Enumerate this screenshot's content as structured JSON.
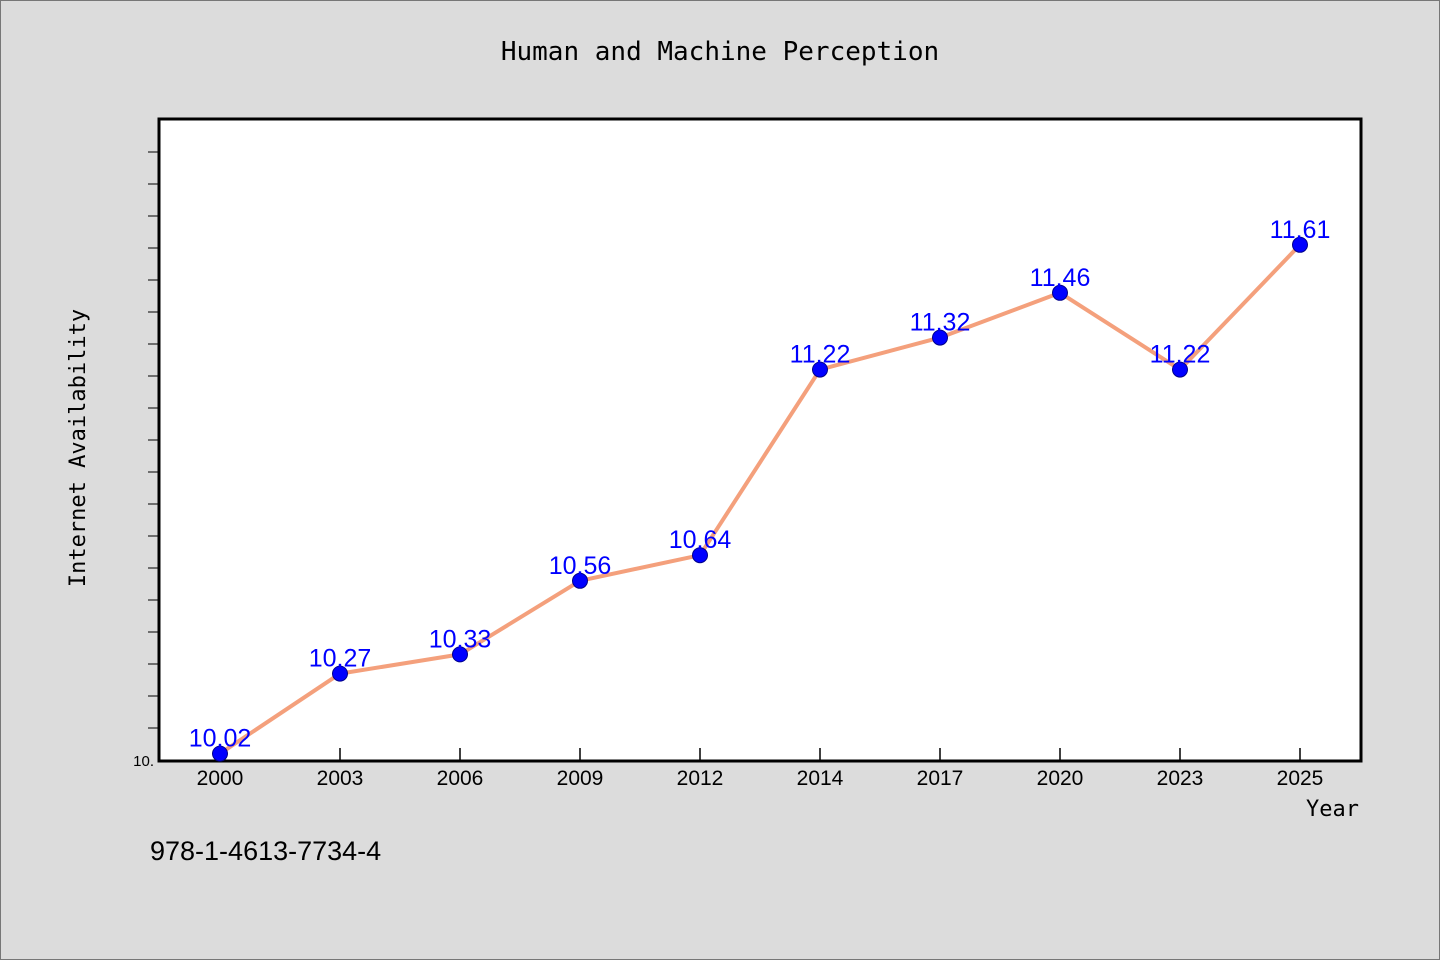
{
  "chart_data": {
    "type": "line",
    "title": "Human and Machine Perception",
    "xlabel": "Year",
    "ylabel": "Internet Availability",
    "categories": [
      "2000",
      "2003",
      "2006",
      "2009",
      "2012",
      "2014",
      "2017",
      "2020",
      "2023",
      "2025"
    ],
    "series": [
      {
        "values": [
          10.02,
          10.27,
          10.33,
          10.56,
          10.64,
          11.22,
          11.32,
          11.46,
          11.22,
          11.61
        ],
        "labels": [
          "10.02",
          "10.27",
          "10.33",
          "10.56",
          "10.64",
          "11.22",
          "11.32",
          "11.46",
          "11.22",
          "11.61"
        ]
      }
    ],
    "ylim": [
      10.0,
      12.0
    ],
    "y_tick_label": "10.",
    "grid": false,
    "line_color": "#f4a07c",
    "marker_color": "#0000ff",
    "label_color": "#0000ff",
    "plot_background": "#ffffff",
    "figure_background": "#dcdcdc"
  },
  "footer": {
    "isbn": "978-1-4613-7734-4"
  }
}
